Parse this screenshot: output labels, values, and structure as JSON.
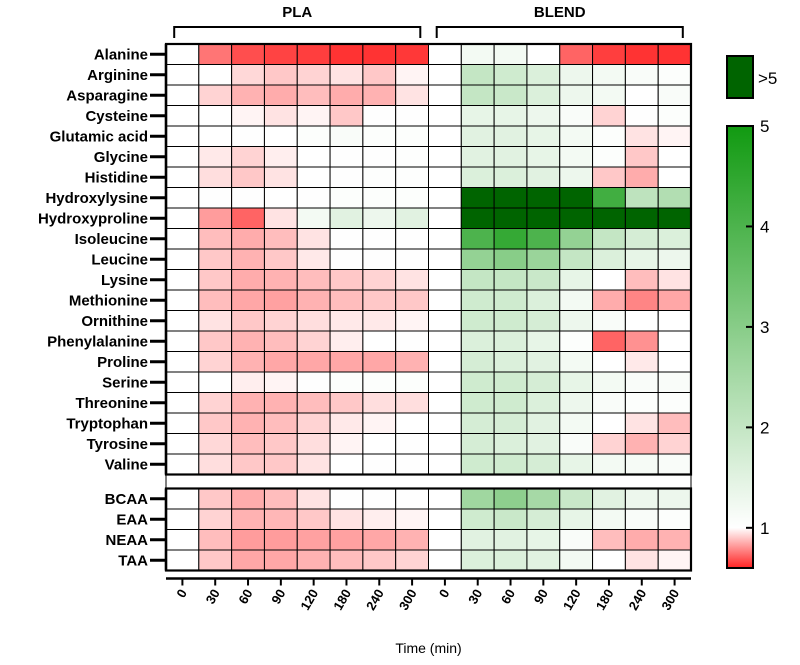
{
  "chart_data": {
    "type": "heatmap",
    "xlabel": "Time (min)",
    "groups": [
      "PLA",
      "BLEND"
    ],
    "timepoints": [
      "0",
      "30",
      "60",
      "90",
      "120",
      "180",
      "240",
      "300"
    ],
    "rows": [
      "Alanine",
      "Arginine",
      "Asparagine",
      "Cysteine",
      "Glutamic acid",
      "Glycine",
      "Histidine",
      "Hydroxylysine",
      "Hydroxyproline",
      "Isoleucine",
      "Leucine",
      "Lysine",
      "Methionine",
      "Ornithine",
      "Phenylalanine",
      "Proline",
      "Serine",
      "Threonine",
      "Tryptophan",
      "Tyrosine",
      "Valine"
    ],
    "summary_rows": [
      "BCAA",
      "EAA",
      "NEAA",
      "TAA"
    ],
    "colorbar": {
      "min": 0.6,
      "max": 5,
      "ticks": [
        "1",
        "2",
        "3",
        "4",
        "5"
      ],
      "overflow_label": ">5",
      "low_color": "#ff2222",
      "mid_color": "#ffffff",
      "high_color": "#119a11",
      "overflow_color": "#006400"
    },
    "values": {
      "PLA": [
        [
          1.0,
          0.75,
          0.68,
          0.66,
          0.65,
          0.63,
          0.63,
          0.64
        ],
        [
          1.0,
          1.0,
          0.93,
          0.9,
          0.92,
          0.95,
          0.9,
          0.98
        ],
        [
          1.0,
          0.92,
          0.86,
          0.85,
          0.88,
          0.85,
          0.86,
          0.95
        ],
        [
          1.0,
          1.0,
          0.98,
          0.95,
          0.98,
          0.9,
          1.02,
          1.02
        ],
        [
          1.0,
          1.0,
          1.02,
          1.0,
          1.05,
          1.1,
          1.05,
          1.05
        ],
        [
          1.0,
          0.96,
          0.92,
          0.97,
          1.0,
          1.02,
          1.02,
          1.03
        ],
        [
          1.0,
          0.94,
          0.9,
          0.95,
          1.0,
          1.02,
          1.03,
          1.03
        ],
        [
          1.0,
          1.02,
          1.02,
          1.0,
          1.02,
          1.05,
          1.05,
          1.05
        ],
        [
          1.0,
          0.82,
          0.72,
          0.95,
          1.2,
          1.5,
          1.3,
          1.5
        ],
        [
          1.0,
          0.88,
          0.85,
          0.88,
          0.95,
          1.02,
          1.02,
          1.02
        ],
        [
          1.0,
          0.9,
          0.86,
          0.9,
          0.96,
          1.02,
          1.02,
          1.02
        ],
        [
          1.0,
          0.9,
          0.85,
          0.86,
          0.88,
          0.9,
          0.92,
          0.95
        ],
        [
          1.0,
          0.88,
          0.84,
          0.83,
          0.86,
          0.88,
          0.9,
          0.9
        ],
        [
          1.0,
          0.95,
          0.9,
          0.92,
          0.94,
          0.96,
          0.96,
          0.98
        ],
        [
          1.0,
          0.9,
          0.86,
          0.88,
          0.92,
          0.97,
          1.0,
          1.02
        ],
        [
          1.0,
          0.92,
          0.86,
          0.84,
          0.84,
          0.84,
          0.84,
          0.86
        ],
        [
          1.0,
          1.0,
          0.97,
          0.98,
          1.02,
          1.05,
          1.05,
          1.05
        ],
        [
          1.0,
          0.92,
          0.86,
          0.86,
          0.88,
          0.9,
          0.94,
          0.94
        ],
        [
          1.0,
          0.9,
          0.86,
          0.88,
          0.92,
          0.96,
          0.98,
          1.0
        ],
        [
          1.0,
          0.93,
          0.88,
          0.9,
          0.94,
          0.98,
          1.0,
          1.02
        ],
        [
          1.0,
          0.94,
          0.9,
          0.9,
          0.95,
          1.0,
          1.02,
          1.02
        ],
        [
          1.0,
          0.9,
          0.85,
          0.88,
          0.95,
          1.02,
          1.02,
          1.02
        ],
        [
          1.0,
          0.92,
          0.86,
          0.87,
          0.9,
          0.95,
          0.97,
          0.98
        ],
        [
          1.0,
          0.88,
          0.82,
          0.82,
          0.83,
          0.83,
          0.84,
          0.86
        ],
        [
          1.0,
          0.9,
          0.84,
          0.84,
          0.86,
          0.88,
          0.9,
          0.92
        ]
      ],
      "BLEND": [
        [
          1.0,
          1.2,
          1.2,
          1.0,
          0.72,
          0.65,
          0.63,
          0.63
        ],
        [
          1.0,
          2.0,
          1.8,
          1.6,
          1.3,
          1.2,
          1.1,
          1.05
        ],
        [
          1.0,
          2.0,
          1.9,
          1.6,
          1.3,
          1.2,
          1.0,
          1.1
        ],
        [
          1.0,
          1.4,
          1.4,
          1.3,
          1.1,
          0.92,
          1.02,
          1.05
        ],
        [
          1.0,
          1.5,
          1.5,
          1.4,
          1.2,
          1.05,
          0.95,
          0.98
        ],
        [
          1.0,
          1.5,
          1.5,
          1.4,
          1.2,
          1.05,
          0.9,
          1.0
        ],
        [
          1.0,
          1.6,
          1.6,
          1.5,
          1.3,
          0.9,
          0.85,
          1.0
        ],
        [
          1.0,
          6.0,
          6.0,
          6.0,
          6.0,
          4.2,
          2.1,
          2.3
        ],
        [
          1.0,
          6.0,
          6.0,
          6.0,
          6.0,
          6.0,
          6.0,
          6.0
        ],
        [
          1.0,
          4.0,
          4.4,
          4.0,
          2.8,
          2.0,
          1.7,
          1.6
        ],
        [
          1.0,
          2.8,
          3.0,
          2.7,
          2.0,
          1.6,
          1.4,
          1.3
        ],
        [
          1.0,
          2.0,
          2.0,
          1.9,
          1.4,
          1.0,
          0.88,
          0.95
        ],
        [
          1.0,
          1.8,
          1.8,
          1.6,
          1.2,
          0.85,
          0.78,
          0.84
        ],
        [
          1.0,
          1.8,
          1.8,
          1.7,
          1.3,
          1.1,
          1.0,
          1.0
        ],
        [
          1.0,
          1.6,
          1.6,
          1.4,
          1.05,
          0.72,
          0.8,
          1.0
        ],
        [
          1.0,
          1.7,
          1.6,
          1.5,
          1.2,
          1.0,
          0.96,
          1.0
        ],
        [
          1.0,
          1.8,
          1.8,
          1.7,
          1.4,
          1.2,
          1.1,
          1.1
        ],
        [
          1.0,
          1.8,
          1.8,
          1.6,
          1.3,
          1.1,
          1.05,
          1.05
        ],
        [
          1.0,
          1.7,
          1.7,
          1.5,
          1.2,
          1.0,
          0.95,
          0.88
        ],
        [
          1.0,
          1.7,
          1.6,
          1.5,
          1.1,
          0.92,
          0.86,
          0.92
        ],
        [
          1.0,
          1.8,
          1.8,
          1.7,
          1.4,
          1.2,
          1.15,
          1.1
        ],
        [
          1.0,
          2.6,
          2.9,
          2.5,
          1.9,
          1.5,
          1.3,
          1.3
        ],
        [
          1.0,
          1.8,
          1.9,
          1.7,
          1.4,
          1.2,
          1.1,
          1.05
        ],
        [
          1.0,
          1.5,
          1.5,
          1.4,
          1.1,
          0.88,
          0.85,
          0.86
        ],
        [
          1.0,
          1.6,
          1.6,
          1.5,
          1.2,
          1.0,
          0.95,
          0.98
        ]
      ]
    }
  }
}
